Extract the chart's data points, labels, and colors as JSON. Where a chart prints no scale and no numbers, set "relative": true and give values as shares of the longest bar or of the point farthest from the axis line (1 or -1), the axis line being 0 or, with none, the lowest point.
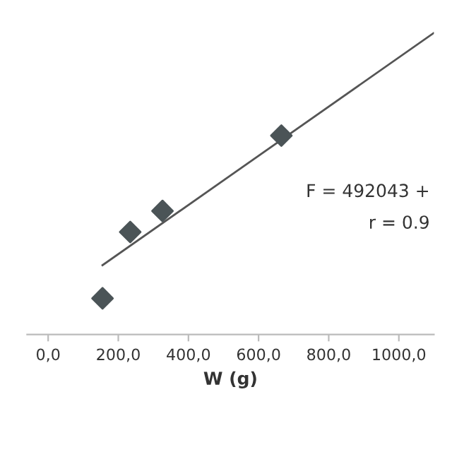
{
  "chart_data": {
    "type": "scatter",
    "xlabel": "W (g)",
    "relative": true,
    "xlim": [
      -60,
      1100
    ],
    "xticks": [
      {
        "value": 0,
        "label": "0,0"
      },
      {
        "value": 200,
        "label": "200,0"
      },
      {
        "value": 400,
        "label": "400,0"
      },
      {
        "value": 600,
        "label": "600,0"
      },
      {
        "value": 800,
        "label": "800,0"
      },
      {
        "value": 1000,
        "label": "1000,0"
      }
    ],
    "grid": false,
    "legend": false,
    "series": [
      {
        "marker": "diamond",
        "color": "#4b5457",
        "x": [
          155,
          234,
          326,
          665
        ],
        "values": [
          0.12,
          0.34,
          0.41,
          0.66
        ]
      },
      {
        "type": "line",
        "color": "#555555",
        "x": [
          155,
          1099
        ],
        "values": [
          0.23,
          1.0
        ]
      }
    ],
    "annotations": [
      "F = 492043 +",
      "r = 0.9"
    ]
  }
}
